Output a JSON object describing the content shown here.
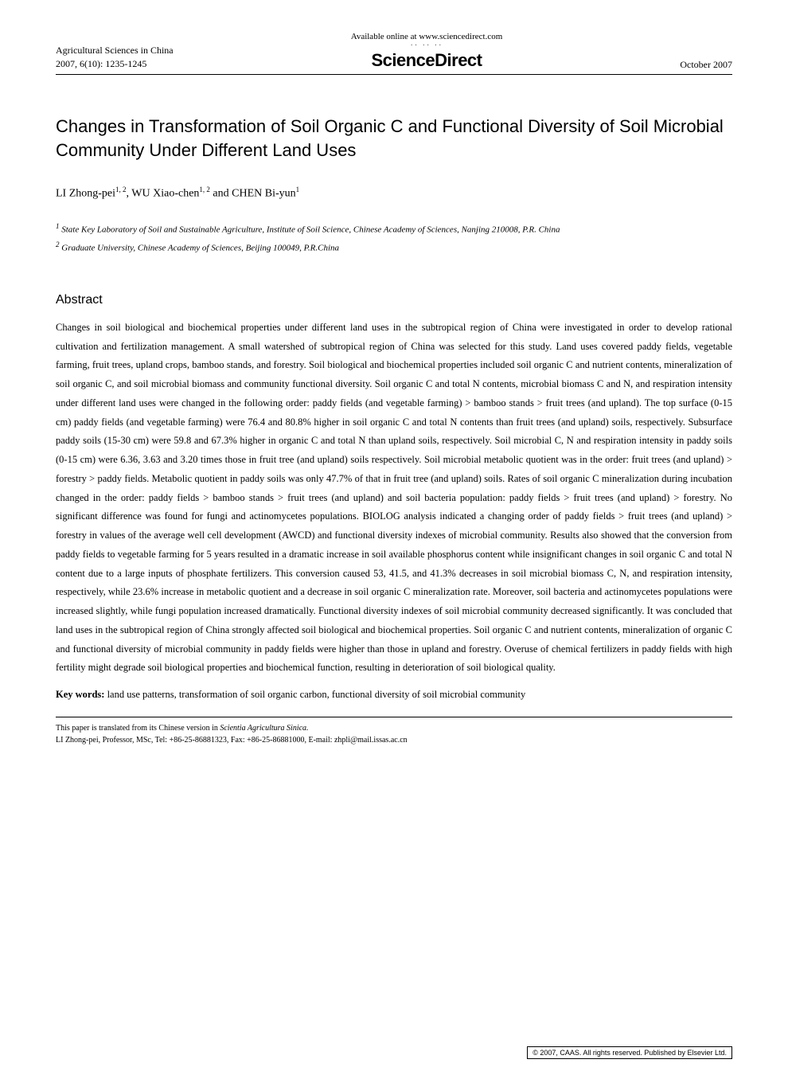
{
  "header": {
    "journal_name": "Agricultural Sciences in China",
    "journal_issue": "2007, 6(10): 1235-1245",
    "available_text": "Available online at www.sciencedirect.com",
    "brand": "ScienceDirect",
    "date": "October 2007"
  },
  "title": "Changes in Transformation of Soil Organic C and Functional Diversity of Soil Microbial Community Under Different Land Uses",
  "authors": {
    "a1_name": "LI Zhong-pei",
    "a1_sup": "1, 2",
    "sep1": ", ",
    "a2_name": "WU Xiao-chen",
    "a2_sup": "1, 2",
    "sep2": " and ",
    "a3_name": "CHEN Bi-yun",
    "a3_sup": "1"
  },
  "affiliations": {
    "aff1_sup": "1",
    "aff1_text": " State Key Laboratory of Soil and Sustainable Agriculture, Institute of Soil Science, Chinese Academy of Sciences, Nanjing 210008, P.R. China",
    "aff2_sup": "2",
    "aff2_text": " Graduate University, Chinese Academy of Sciences, Beijing 100049, P.R.China"
  },
  "abstract": {
    "heading": "Abstract",
    "body": "Changes in soil biological and biochemical properties under different land uses in the subtropical region of China were investigated in order to develop rational cultivation and fertilization management. A small watershed of subtropical region of China was selected for this study. Land uses covered paddy fields, vegetable farming, fruit trees, upland crops, bamboo stands, and forestry. Soil biological and biochemical properties included soil organic C and nutrient contents, mineralization of soil organic C, and soil microbial biomass and community functional diversity. Soil organic C and total N contents, microbial biomass C and N, and respiration intensity under different land uses were changed in the following order: paddy fields (and vegetable farming) > bamboo stands > fruit trees (and upland). The top surface (0-15 cm) paddy fields (and vegetable farming) were 76.4 and 80.8% higher in soil organic C and total N contents than fruit trees (and upland) soils, respectively. Subsurface paddy soils (15-30 cm) were 59.8 and 67.3% higher in organic C and total N than upland soils, respectively. Soil microbial C, N and respiration intensity in paddy soils (0-15 cm) were 6.36, 3.63 and 3.20 times those in fruit tree (and upland) soils respectively. Soil microbial metabolic quotient was in the order: fruit trees (and upland) > forestry > paddy fields. Metabolic quotient in paddy soils was only 47.7% of that in fruit tree (and upland) soils. Rates of soil organic C mineralization during incubation changed in the order: paddy fields > bamboo stands > fruit trees (and upland) and soil bacteria population: paddy fields > fruit trees (and upland) > forestry. No significant difference was found for fungi and actinomycetes populations. BIOLOG analysis indicated a changing order of paddy fields > fruit trees (and upland) > forestry in values of the average well cell development (AWCD) and functional diversity indexes of microbial community. Results also showed that the conversion from paddy fields to vegetable farming for 5 years resulted in a dramatic increase in soil available phosphorus content while insignificant changes in soil organic C and total N content due to a large inputs of phosphate fertilizers. This conversion caused 53, 41.5, and 41.3% decreases in soil microbial biomass C, N, and respiration intensity, respectively, while 23.6% increase in metabolic quotient and a decrease in soil organic C mineralization rate. Moreover, soil bacteria and actinomycetes populations were increased slightly, while fungi population increased dramatically. Functional diversity indexes of soil microbial community decreased significantly. It was concluded that land uses in the subtropical region of China strongly affected soil biological and biochemical properties. Soil organic C and nutrient contents, mineralization of organic C and functional diversity of microbial community in paddy fields were higher than those in upland and forestry. Overuse of chemical fertilizers in paddy fields with high fertility might degrade soil biological properties and biochemical function, resulting in deterioration of soil biological quality."
  },
  "keywords": {
    "label": "Key words:",
    "text": " land use patterns, transformation of soil organic carbon, functional diversity of soil microbial community"
  },
  "footer": {
    "translation_note_prefix": "This paper is translated from its Chinese version in ",
    "translation_note_journal": "Scientia Agricultura Sinica.",
    "corresponding": "LI Zhong-pei, Professor, MSc, Tel: +86-25-86881323, Fax: +86-25-86881000, E-mail: zhpli@mail.issas.ac.cn"
  },
  "copyright": "© 2007, CAAS. All rights reserved. Published by Elsevier Ltd."
}
